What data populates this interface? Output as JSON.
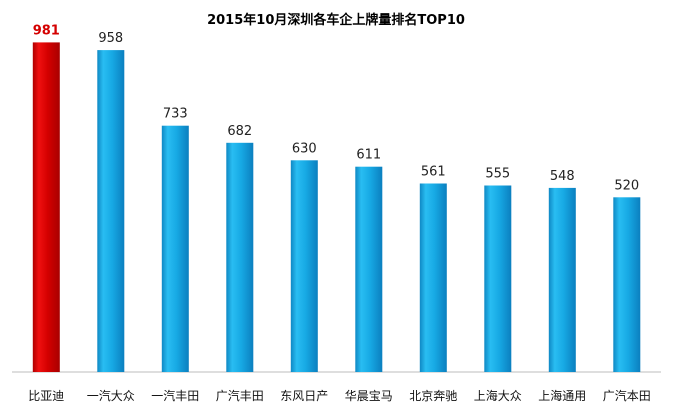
{
  "colors": {
    "highlight_bar": "#d40000",
    "bar": "#17a9e4",
    "highlight_value": "#d40000",
    "value": "#222222",
    "axis": "#bdbdbd"
  },
  "chart_data": {
    "type": "bar",
    "title": "2015年10月深圳各车企上牌量排名TOP10",
    "categories": [
      "比亚迪",
      "一汽大众",
      "一汽丰田",
      "广汽丰田",
      "东风日产",
      "华晨宝马",
      "北京奔驰",
      "上海大众",
      "上海通用",
      "广汽本田"
    ],
    "values": [
      981,
      958,
      733,
      682,
      630,
      611,
      561,
      555,
      548,
      520
    ],
    "highlight_index": 0,
    "ylim": [
      0,
      1000
    ],
    "grid": false,
    "legend": "none",
    "xlabel": "",
    "ylabel": ""
  }
}
